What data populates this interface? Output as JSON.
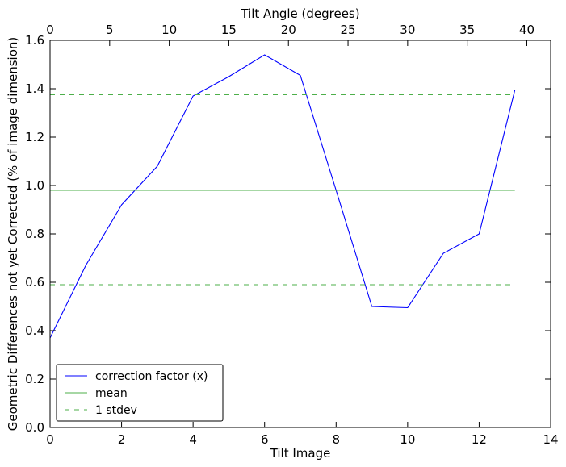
{
  "chart_data": {
    "type": "line",
    "xlabel": "Tilt Image",
    "ylabel": "Geometric Differences not yet Corrected (% of image dimension)",
    "x2label": "Tilt Angle (degrees)",
    "xlim": [
      0,
      14
    ],
    "ylim": [
      0,
      1.6
    ],
    "x2lim": [
      0,
      42
    ],
    "xticks": [
      0,
      2,
      4,
      6,
      8,
      10,
      12,
      14
    ],
    "yticks": [
      0.0,
      0.2,
      0.4,
      0.6,
      0.8,
      1.0,
      1.2,
      1.4,
      1.6
    ],
    "x2ticks": [
      0,
      5,
      10,
      15,
      20,
      25,
      30,
      35,
      40
    ],
    "xtick_labels": [
      "0",
      "2",
      "4",
      "6",
      "8",
      "10",
      "12",
      "14"
    ],
    "ytick_labels": [
      "0.0",
      "0.2",
      "0.4",
      "0.6",
      "0.8",
      "1.0",
      "1.2",
      "1.4",
      "1.6"
    ],
    "x2tick_labels": [
      "0",
      "5",
      "10",
      "15",
      "20",
      "25",
      "30",
      "35",
      "40"
    ],
    "grid": false,
    "legend_position": "lower-left",
    "series": [
      {
        "name": "correction factor (x)",
        "color": "#0000ff",
        "style": "solid",
        "x": [
          0,
          1,
          2,
          3,
          4,
          5,
          6,
          7,
          8,
          9,
          10,
          11,
          12,
          13
        ],
        "y": [
          0.37,
          0.67,
          0.92,
          1.08,
          1.37,
          1.45,
          1.54,
          1.455,
          0.98,
          0.5,
          0.495,
          0.72,
          0.8,
          1.395
        ]
      },
      {
        "name": "mean",
        "color": "#4daf4a",
        "style": "solid",
        "x": [
          0,
          13
        ],
        "y": [
          0.98,
          0.98
        ]
      },
      {
        "name": "1 stdev",
        "color": "#4daf4a",
        "style": "dashed",
        "x": [
          0,
          13
        ],
        "y": [
          1.375,
          1.375
        ]
      },
      {
        "name": "",
        "color": "#4daf4a",
        "style": "dashed",
        "x": [
          0,
          13
        ],
        "y": [
          0.59,
          0.59
        ]
      }
    ],
    "legend": [
      {
        "label": "correction factor (x)",
        "color": "#0000ff",
        "style": "solid"
      },
      {
        "label": "mean",
        "color": "#4daf4a",
        "style": "solid"
      },
      {
        "label": "1 stdev",
        "color": "#4daf4a",
        "style": "dashed"
      }
    ]
  }
}
